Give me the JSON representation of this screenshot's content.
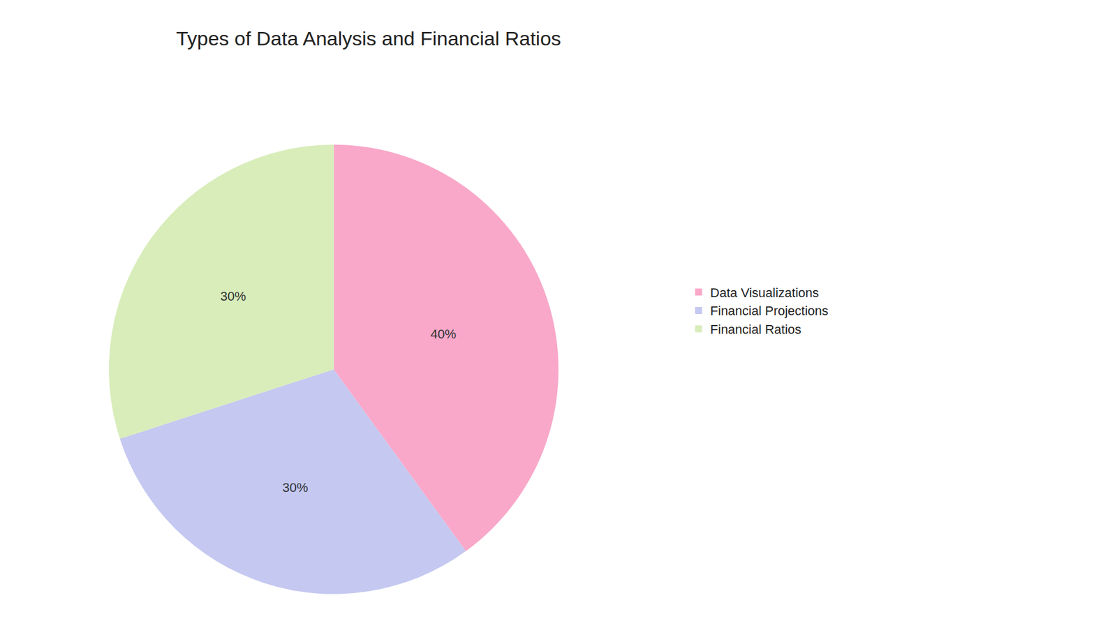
{
  "chart_data": {
    "type": "pie",
    "title": "Types of Data Analysis and Financial Ratios",
    "categories": [
      "Data Visualizations",
      "Financial Projections",
      "Financial Ratios"
    ],
    "values": [
      40,
      30,
      30
    ],
    "value_labels": [
      "40%",
      "30%",
      "30%"
    ],
    "colors": [
      "#F9A8C9",
      "#C5C8F0",
      "#D8EDBA"
    ],
    "data_labels": true,
    "legend": "right"
  }
}
